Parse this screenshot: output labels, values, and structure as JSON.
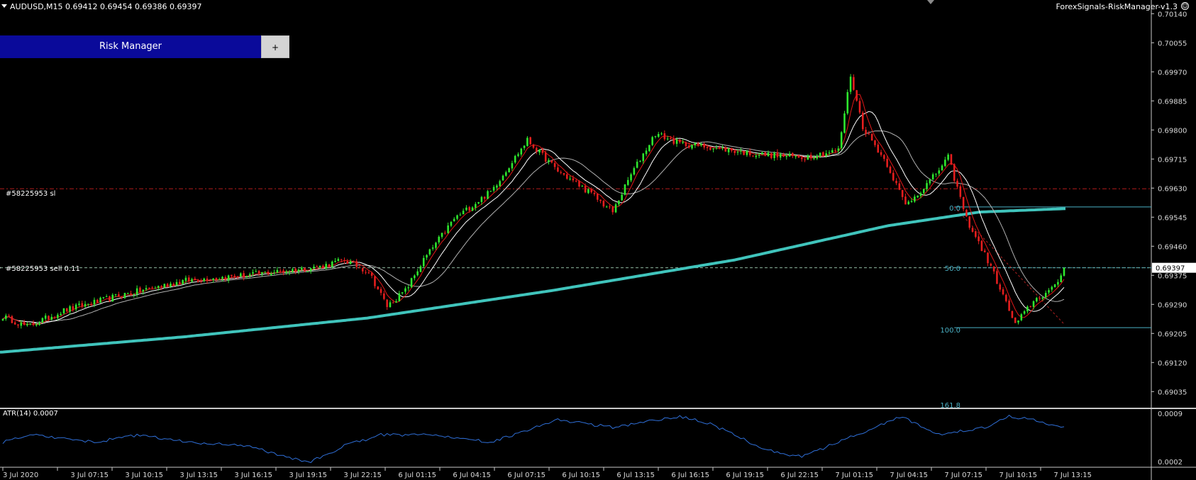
{
  "header": {
    "symbol_title": "AUDUSD,M15  0.69412 0.69454 0.69386 0.69397",
    "ea_label": "ForexSignals-RiskManager-v1.3",
    "smile_icon": "smile-icon"
  },
  "risk_manager": {
    "title": "Risk Manager",
    "plus_label": "+"
  },
  "orders": {
    "sl_label": "#58225953 sl",
    "sell_label": "#58225953 sell 0.11"
  },
  "fib_levels": {
    "level_0": "0.0",
    "level_50": "50.0",
    "level_100": "100.0",
    "level_161": "161.8"
  },
  "atr": {
    "label": "ATR(14) 0.0007",
    "axis_top": "0.0009",
    "axis_bottom": "0.0002"
  },
  "price_axis": {
    "ticks": [
      "0.70140",
      "0.70055",
      "0.69970",
      "0.69885",
      "0.69800",
      "0.69715",
      "0.69630",
      "0.69545",
      "0.69460",
      "0.69375",
      "0.69290",
      "0.69205",
      "0.69120",
      "0.69035"
    ],
    "current_price": "0.69397"
  },
  "time_axis": {
    "ticks": [
      "3 Jul 2020",
      "3 Jul 07:15",
      "3 Jul 10:15",
      "3 Jul 13:15",
      "3 Jul 16:15",
      "3 Jul 19:15",
      "3 Jul 22:15",
      "6 Jul 01:15",
      "6 Jul 04:15",
      "6 Jul 07:15",
      "6 Jul 10:15",
      "6 Jul 13:15",
      "6 Jul 16:15",
      "6 Jul 19:15",
      "6 Jul 22:15",
      "7 Jul 01:15",
      "7 Jul 04:15",
      "7 Jul 07:15",
      "7 Jul 10:15",
      "7 Jul 13:15"
    ]
  },
  "colors": {
    "bull": "#2ee82e",
    "bear": "#e61e1e",
    "ma_long": "#40c4bc",
    "ma_fast": "#e01818",
    "ma_white": "#ffffff",
    "ma_gray": "#b0b0b0",
    "fib": "#4ab0c4",
    "atr_line": "#2f6fd8",
    "sl_line": "#b01c1c"
  },
  "chart_data": {
    "type": "candlestick",
    "symbol": "AUDUSD",
    "timeframe": "M15",
    "ylim": [
      0.6899,
      0.7018
    ],
    "anchors": [
      {
        "i": 0,
        "c": 0.69255
      },
      {
        "i": 8,
        "c": 0.69225
      },
      {
        "i": 20,
        "c": 0.69272
      },
      {
        "i": 40,
        "c": 0.6932
      },
      {
        "i": 60,
        "c": 0.6936
      },
      {
        "i": 80,
        "c": 0.69375
      },
      {
        "i": 104,
        "c": 0.694
      },
      {
        "i": 112,
        "c": 0.6942
      },
      {
        "i": 120,
        "c": 0.69385
      },
      {
        "i": 126,
        "c": 0.69285
      },
      {
        "i": 132,
        "c": 0.6933
      },
      {
        "i": 138,
        "c": 0.6942
      },
      {
        "i": 148,
        "c": 0.6954
      },
      {
        "i": 160,
        "c": 0.6962
      },
      {
        "i": 172,
        "c": 0.6977
      },
      {
        "i": 182,
        "c": 0.6968
      },
      {
        "i": 192,
        "c": 0.6962
      },
      {
        "i": 200,
        "c": 0.6956
      },
      {
        "i": 206,
        "c": 0.6967
      },
      {
        "i": 214,
        "c": 0.6979
      },
      {
        "i": 222,
        "c": 0.6976
      },
      {
        "i": 232,
        "c": 0.6975
      },
      {
        "i": 246,
        "c": 0.6973
      },
      {
        "i": 262,
        "c": 0.6972
      },
      {
        "i": 274,
        "c": 0.6974
      },
      {
        "i": 278,
        "c": 0.6996
      },
      {
        "i": 282,
        "c": 0.6981
      },
      {
        "i": 290,
        "c": 0.697
      },
      {
        "i": 296,
        "c": 0.6958
      },
      {
        "i": 304,
        "c": 0.6965
      },
      {
        "i": 310,
        "c": 0.6972
      },
      {
        "i": 316,
        "c": 0.6954
      },
      {
        "i": 324,
        "c": 0.694
      },
      {
        "i": 332,
        "c": 0.6923
      },
      {
        "i": 338,
        "c": 0.693
      },
      {
        "i": 345,
        "c": 0.6934
      },
      {
        "i": 348,
        "c": 0.69397
      }
    ],
    "atr_anchors": [
      {
        "i": 0,
        "v": 0.0005
      },
      {
        "i": 10,
        "v": 0.0006
      },
      {
        "i": 30,
        "v": 0.0005
      },
      {
        "i": 45,
        "v": 0.0006
      },
      {
        "i": 60,
        "v": 0.0005
      },
      {
        "i": 80,
        "v": 0.00045
      },
      {
        "i": 100,
        "v": 0.00022
      },
      {
        "i": 112,
        "v": 0.00045
      },
      {
        "i": 124,
        "v": 0.0006
      },
      {
        "i": 140,
        "v": 0.0006
      },
      {
        "i": 160,
        "v": 0.0005
      },
      {
        "i": 182,
        "v": 0.0008
      },
      {
        "i": 200,
        "v": 0.0007
      },
      {
        "i": 222,
        "v": 0.00085
      },
      {
        "i": 232,
        "v": 0.00075
      },
      {
        "i": 250,
        "v": 0.0004
      },
      {
        "i": 262,
        "v": 0.0003
      },
      {
        "i": 280,
        "v": 0.0006
      },
      {
        "i": 295,
        "v": 0.00085
      },
      {
        "i": 306,
        "v": 0.0006
      },
      {
        "i": 322,
        "v": 0.0007
      },
      {
        "i": 330,
        "v": 0.00085
      },
      {
        "i": 338,
        "v": 0.0008
      },
      {
        "i": 348,
        "v": 0.0007
      }
    ],
    "ma200_anchors": [
      {
        "i": 0,
        "v": 0.6915
      },
      {
        "i": 60,
        "v": 0.69195
      },
      {
        "i": 120,
        "v": 0.6925
      },
      {
        "i": 180,
        "v": 0.6933
      },
      {
        "i": 240,
        "v": 0.6942
      },
      {
        "i": 290,
        "v": 0.6952
      },
      {
        "i": 320,
        "v": 0.6956
      },
      {
        "i": 348,
        "v": 0.6957
      }
    ],
    "sl_price": 0.69628,
    "sell_price": 0.69397,
    "fib_0": 0.69575,
    "fib_100": 0.69222
  }
}
